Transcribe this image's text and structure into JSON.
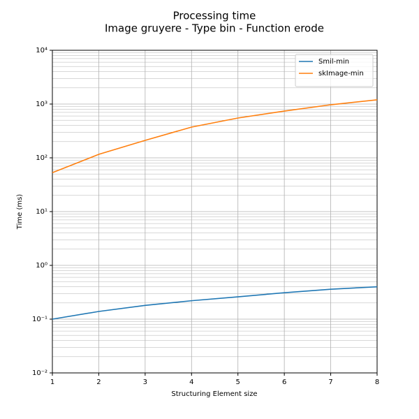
{
  "chart_data": {
    "type": "line",
    "title": "Processing time",
    "subtitle": "Image gruyere - Type bin - Function erode",
    "x_label": "Structuring Element size",
    "y_label": "Time (ms)",
    "x": [
      1,
      2,
      3,
      4,
      5,
      6,
      7,
      8
    ],
    "series": [
      {
        "name": "Smil-min",
        "color": "#1f77b4",
        "values": [
          0.1,
          0.139,
          0.18,
          0.22,
          0.26,
          0.31,
          0.36,
          0.4
        ]
      },
      {
        "name": "skImage-min",
        "color": "#ff7f0e",
        "values": [
          53,
          116,
          211,
          373,
          550,
          740,
          970,
          1200
        ]
      }
    ],
    "xlim": [
      1,
      8
    ],
    "xticks": [
      1,
      2,
      3,
      4,
      5,
      6,
      7,
      8
    ],
    "ylim": [
      0.01,
      10000
    ],
    "yticks": [
      {
        "value": 0.01,
        "label": "10⁻²"
      },
      {
        "value": 0.1,
        "label": "10⁻¹"
      },
      {
        "value": 1,
        "label": "10⁰"
      },
      {
        "value": 10,
        "label": "10¹"
      },
      {
        "value": 100,
        "label": "10²"
      },
      {
        "value": 1000,
        "label": "10³"
      },
      {
        "value": 10000,
        "label": "10⁴"
      }
    ],
    "log_y": true,
    "grid": true,
    "legend": "upper right"
  }
}
